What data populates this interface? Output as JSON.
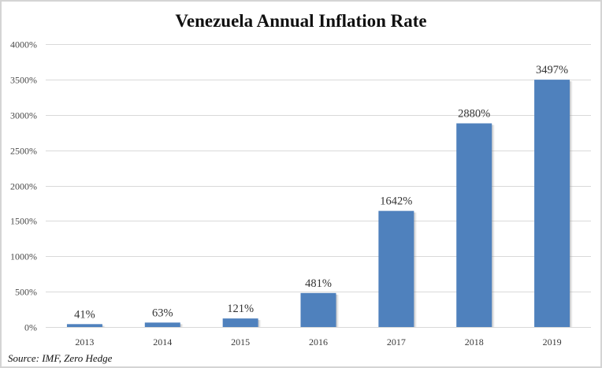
{
  "chart_data": {
    "type": "bar",
    "title": "Venezuela Annual Inflation Rate",
    "xlabel": "",
    "ylabel": "",
    "categories": [
      "2013",
      "2014",
      "2015",
      "2016",
      "2017",
      "2018",
      "2019"
    ],
    "values": [
      41,
      63,
      121,
      481,
      1642,
      2880,
      3497
    ],
    "data_labels": [
      "41%",
      "63%",
      "121%",
      "481%",
      "1642%",
      "2880%",
      "3497%"
    ],
    "ylim": [
      0,
      4000
    ],
    "yticks": [
      0,
      500,
      1000,
      1500,
      2000,
      2500,
      3000,
      3500,
      4000
    ],
    "ytick_labels": [
      "0%",
      "500%",
      "1000%",
      "1500%",
      "2000%",
      "2500%",
      "3000%",
      "3500%",
      "4000%"
    ],
    "grid": true,
    "legend": "none",
    "bar_color": "#4F81BD",
    "annotation": "Source: IMF, Zero Hedge"
  }
}
